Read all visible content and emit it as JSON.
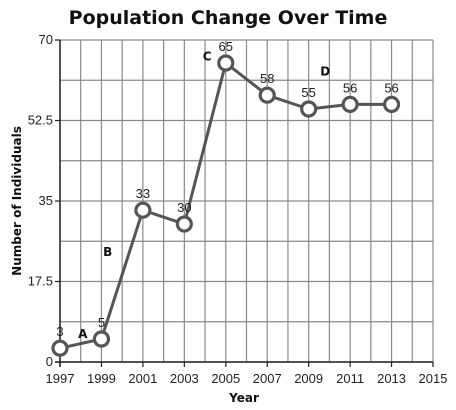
{
  "chart_data": {
    "type": "line",
    "title": "Population Change Over Time",
    "xlabel": "Year",
    "ylabel": "Number of Individuals",
    "xlim": [
      1997,
      2015
    ],
    "ylim": [
      0,
      70
    ],
    "x_ticks": [
      1997,
      1999,
      2001,
      2003,
      2005,
      2007,
      2009,
      2011,
      2013,
      2015
    ],
    "x_tick_labels": [
      "1997",
      "1999",
      "2001",
      "2003",
      "2005",
      "2007",
      "2009",
      "2011",
      "2013",
      "2015"
    ],
    "y_ticks": [
      0,
      17.5,
      35,
      52.5,
      70
    ],
    "y_tick_labels": [
      "0",
      "17.5",
      "35",
      "52.5",
      "70"
    ],
    "grid": true,
    "x": [
      1997,
      1999,
      2001,
      2003,
      2005,
      2007,
      2009,
      2011,
      2013
    ],
    "values": [
      3,
      5,
      33,
      30,
      65,
      58,
      55,
      56,
      56
    ],
    "data_labels": [
      "3",
      "5",
      "33",
      "30",
      "65",
      "58",
      "55",
      "56",
      "56"
    ],
    "annotations": [
      {
        "text": "A",
        "x": 1998.1,
        "y": 5.2
      },
      {
        "text": "B",
        "x": 1999.3,
        "y": 23
      },
      {
        "text": "C",
        "x": 2004.1,
        "y": 65.5
      },
      {
        "text": "D",
        "x": 2009.8,
        "y": 62.3
      }
    ],
    "colors": {
      "line": "#555555",
      "marker_edge": "#555555",
      "marker_fill": "#ffffff",
      "grid": "#8a8a8a",
      "axis": "#222222"
    }
  }
}
